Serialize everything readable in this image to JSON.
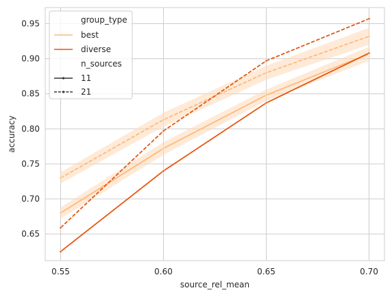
{
  "chart_data": {
    "type": "line",
    "xlabel": "source_rel_mean",
    "ylabel": "accuracy",
    "x": [
      0.55,
      0.6,
      0.65,
      0.7
    ],
    "xlim": [
      0.5425,
      0.7075
    ],
    "ylim": [
      0.612,
      0.973
    ],
    "xticks": [
      "0.55",
      "0.60",
      "0.65",
      "0.70"
    ],
    "yticks": [
      "0.65",
      "0.70",
      "0.75",
      "0.80",
      "0.85",
      "0.90",
      "0.95"
    ],
    "grid": true,
    "legend_placement": "upper-left",
    "legend": {
      "hue_title": "group_type",
      "hue_entries": [
        "best",
        "diverse"
      ],
      "style_title": "n_sources",
      "style_entries": [
        "11",
        "21"
      ]
    },
    "colors": {
      "best": "#fdb97d",
      "diverse": "#e6550d",
      "grid": "#cccccc",
      "band": "#fdd9b7"
    },
    "series": [
      {
        "group_type": "best",
        "n_sources": "11",
        "dash": "solid",
        "values": [
          0.68,
          0.772,
          0.848,
          0.907
        ],
        "ci_lower": [
          0.672,
          0.763,
          0.84,
          0.897
        ],
        "ci_upper": [
          0.688,
          0.781,
          0.856,
          0.917
        ]
      },
      {
        "group_type": "best",
        "n_sources": "21",
        "dash": "dashed",
        "values": [
          0.73,
          0.813,
          0.88,
          0.932
        ],
        "ci_lower": [
          0.722,
          0.803,
          0.87,
          0.92
        ],
        "ci_upper": [
          0.738,
          0.823,
          0.89,
          0.944
        ]
      },
      {
        "group_type": "diverse",
        "n_sources": "11",
        "dash": "solid",
        "values": [
          0.625,
          0.74,
          0.837,
          0.908
        ]
      },
      {
        "group_type": "diverse",
        "n_sources": "21",
        "dash": "dashed",
        "values": [
          0.659,
          0.797,
          0.897,
          0.957
        ]
      }
    ]
  }
}
